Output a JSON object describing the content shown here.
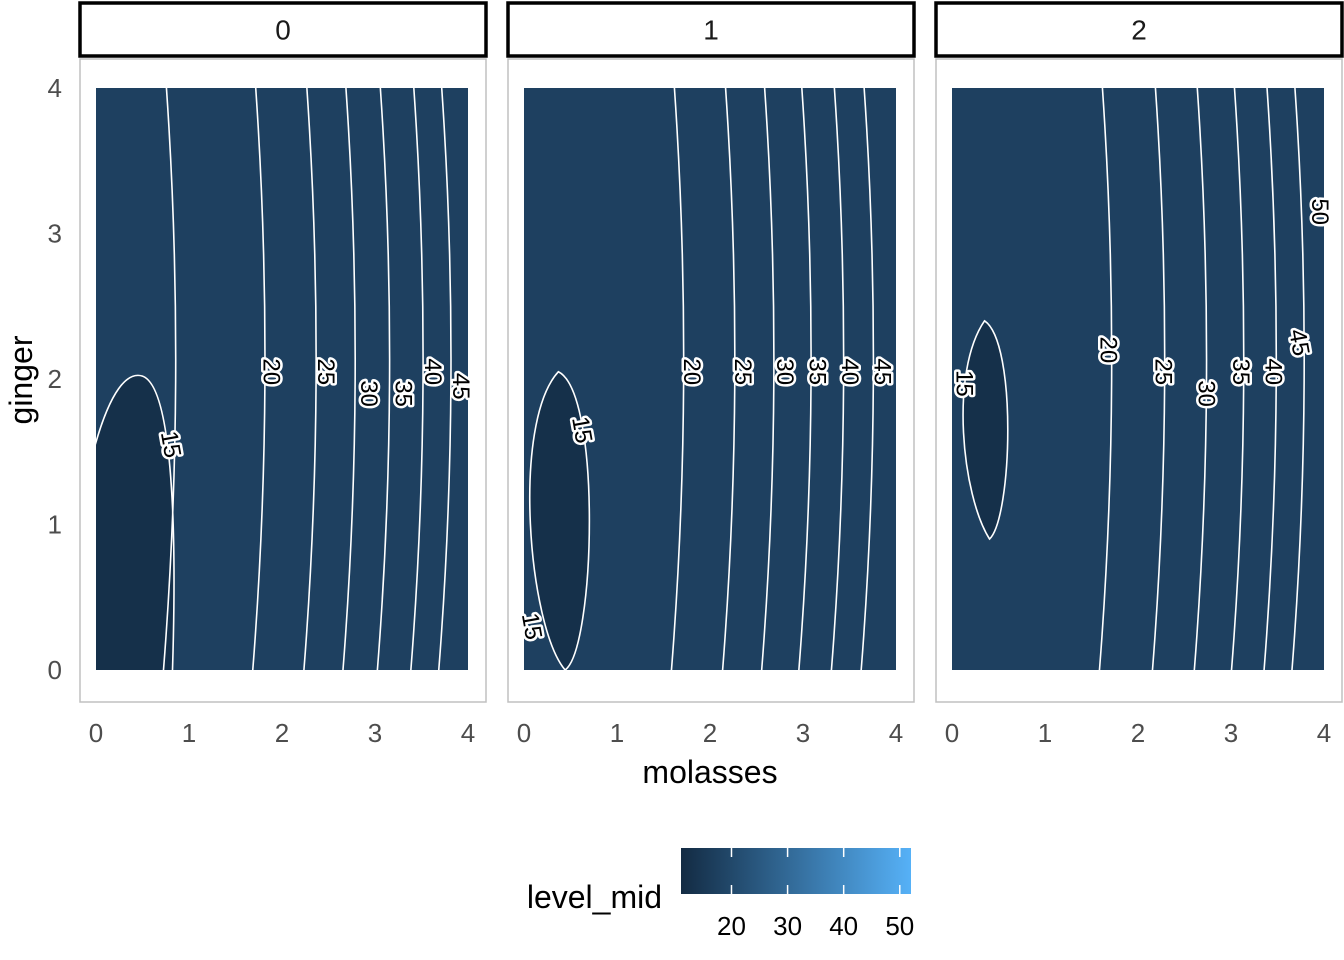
{
  "chart_data": {
    "type": "contour",
    "facet_variable_values": [
      "0",
      "1",
      "2"
    ],
    "xlabel": "molasses",
    "ylabel": "ginger",
    "xlim": [
      0,
      4
    ],
    "ylim": [
      0,
      4
    ],
    "x_ticks": [
      "0",
      "1",
      "2",
      "3",
      "4"
    ],
    "y_ticks": [
      "0",
      "1",
      "2",
      "3",
      "4"
    ],
    "grid": false,
    "legend": {
      "title": "level_mid",
      "position": "bottom",
      "ticks": [
        "20",
        "30",
        "40",
        "50"
      ],
      "tick_values": [
        20,
        30,
        40,
        50
      ],
      "range": [
        11,
        52
      ],
      "color_low": "#132B43",
      "color_high": "#56B1F7"
    },
    "fill_levels": [
      12.5,
      17.5,
      22.5,
      27.5,
      32.5,
      37.5,
      42.5,
      47.5,
      52.5
    ],
    "panels": [
      {
        "strip": "0",
        "contour_breaks_x": [
          0.82,
          1.78,
          2.33,
          2.75,
          3.12,
          3.48,
          3.78
        ],
        "contour_labels": [
          {
            "text": "15",
            "x": 0.8,
            "y": 1.55,
            "rotation": 80
          },
          {
            "text": "20",
            "x": 1.88,
            "y": 2.05,
            "rotation": 90
          },
          {
            "text": "25",
            "x": 2.47,
            "y": 2.05,
            "rotation": 90
          },
          {
            "text": "30",
            "x": 2.93,
            "y": 1.9,
            "rotation": 90
          },
          {
            "text": "35",
            "x": 3.3,
            "y": 1.9,
            "rotation": 90
          },
          {
            "text": "40",
            "x": 3.62,
            "y": 2.05,
            "rotation": 90
          },
          {
            "text": "45",
            "x": 3.92,
            "y": 1.95,
            "rotation": 90
          }
        ],
        "low_region": {
          "type": "edge-blob",
          "y_range": [
            0,
            2.0
          ]
        }
      },
      {
        "strip": "1",
        "contour_breaks_x": [
          1.68,
          2.23,
          2.65,
          3.05,
          3.4,
          3.72
        ],
        "contour_labels": [
          {
            "text": "15",
            "x": 0.62,
            "y": 1.65,
            "rotation": 80
          },
          {
            "text": "15",
            "x": 0.08,
            "y": 0.3,
            "rotation": 80
          },
          {
            "text": "20",
            "x": 1.8,
            "y": 2.05,
            "rotation": 90
          },
          {
            "text": "25",
            "x": 2.35,
            "y": 2.05,
            "rotation": 90
          },
          {
            "text": "30",
            "x": 2.8,
            "y": 2.05,
            "rotation": 90
          },
          {
            "text": "35",
            "x": 3.15,
            "y": 2.05,
            "rotation": 90
          },
          {
            "text": "40",
            "x": 3.5,
            "y": 2.05,
            "rotation": 90
          },
          {
            "text": "45",
            "x": 3.85,
            "y": 2.05,
            "rotation": 90
          }
        ],
        "low_region": {
          "type": "ellipse",
          "x_center": 0.37,
          "y_range": [
            0,
            2.05
          ]
        }
      },
      {
        "strip": "2",
        "contour_breaks_x": [
          1.68,
          2.25,
          2.7,
          3.1,
          3.45,
          3.75
        ],
        "contour_labels": [
          {
            "text": "15",
            "x": 0.13,
            "y": 1.97,
            "rotation": 90
          },
          {
            "text": "20",
            "x": 1.68,
            "y": 2.2,
            "rotation": 90
          },
          {
            "text": "25",
            "x": 2.27,
            "y": 2.05,
            "rotation": 90
          },
          {
            "text": "30",
            "x": 2.73,
            "y": 1.9,
            "rotation": 90
          },
          {
            "text": "35",
            "x": 3.1,
            "y": 2.05,
            "rotation": 90
          },
          {
            "text": "40",
            "x": 3.45,
            "y": 2.05,
            "rotation": 90
          },
          {
            "text": "45",
            "x": 3.73,
            "y": 2.25,
            "rotation": 80
          },
          {
            "text": "50",
            "x": 3.95,
            "y": 3.15,
            "rotation": 90
          }
        ],
        "low_region": {
          "type": "ellipse",
          "x_center": 0.35,
          "y_range": [
            0.9,
            2.4
          ]
        }
      }
    ]
  }
}
